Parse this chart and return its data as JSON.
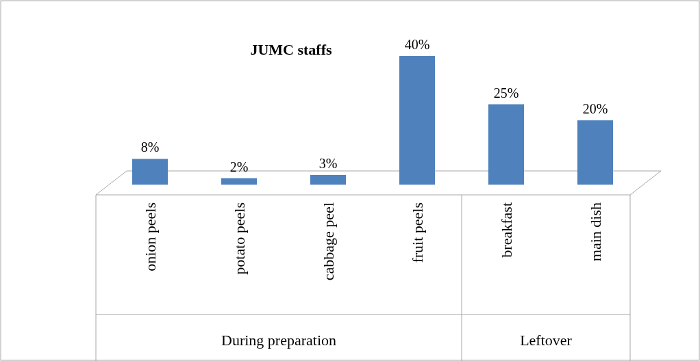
{
  "chart_data": {
    "type": "bar",
    "title": "JUMC  staffs",
    "categories": [
      "onion peels",
      "potato peels",
      "cabbage peel",
      "fruit peels",
      "breakfast",
      "main dish"
    ],
    "values": [
      8,
      2,
      3,
      40,
      25,
      20
    ],
    "color": "#4f81bd",
    "value_labels": [
      "8%",
      "2%",
      "3%",
      "40%",
      "25%",
      "20%"
    ],
    "annotations": [
      "During preparation",
      "Leftover"
    ]
  }
}
